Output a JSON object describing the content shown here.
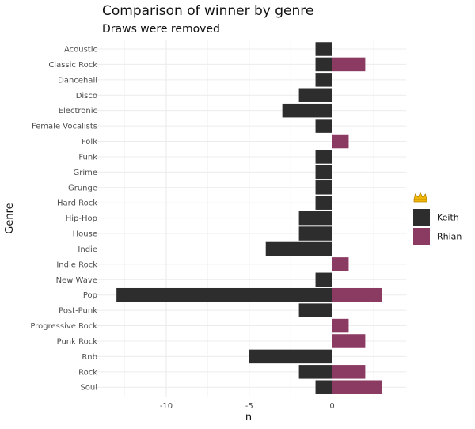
{
  "chart_data": {
    "type": "bar",
    "orientation": "horizontal",
    "stacked": true,
    "title": "Comparison of winner by genre",
    "subtitle": "Draws were removed",
    "xlabel": "n",
    "ylabel": "Genre",
    "xlim": [
      -14,
      4
    ],
    "xticks": [
      -10,
      -5,
      0
    ],
    "grid": true,
    "legend_position": "right",
    "legend_title_icon": "crown-icon",
    "categories": [
      "Acoustic",
      "Classic Rock",
      "Dancehall",
      "Disco",
      "Electronic",
      "Female Vocalists",
      "Folk",
      "Funk",
      "Grime",
      "Grunge",
      "Hard Rock",
      "Hip-Hop",
      "House",
      "Indie",
      "Indie Rock",
      "New Wave",
      "Pop",
      "Post-Punk",
      "Progressive Rock",
      "Punk Rock",
      "Rnb",
      "Rock",
      "Soul"
    ],
    "series": [
      {
        "name": "Keith",
        "color": "#2d2d2d",
        "values": [
          -1,
          -1,
          -1,
          -2,
          -3,
          -1,
          0,
          -1,
          -1,
          -1,
          -1,
          -2,
          -2,
          -4,
          0,
          -1,
          -13,
          -2,
          0,
          0,
          -5,
          -2,
          -1
        ]
      },
      {
        "name": "Rhian",
        "color": "#8b3a62",
        "values": [
          0,
          2,
          0,
          0,
          0,
          0,
          1,
          0,
          0,
          0,
          0,
          0,
          0,
          0,
          1,
          0,
          3,
          0,
          1,
          2,
          0,
          2,
          3
        ]
      }
    ]
  }
}
